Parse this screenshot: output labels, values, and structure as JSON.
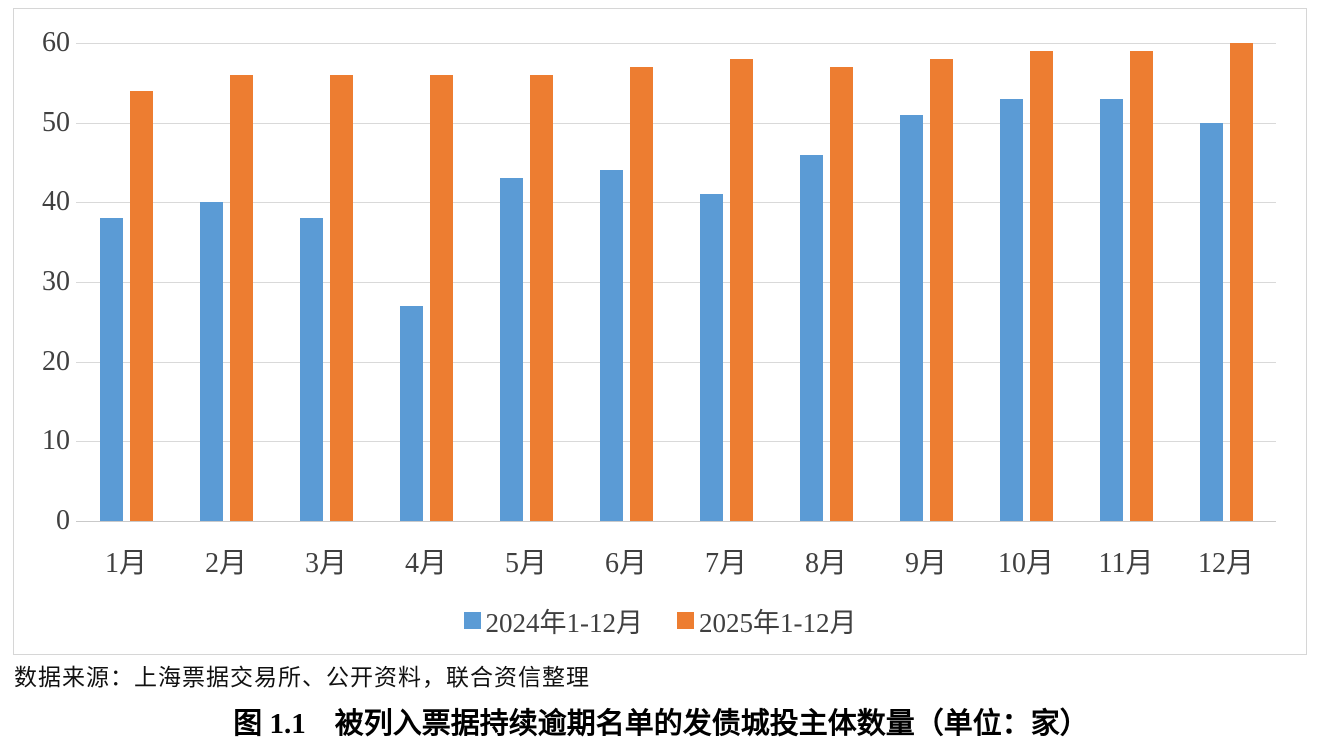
{
  "chart_data": {
    "type": "bar",
    "categories": [
      "1月",
      "2月",
      "3月",
      "4月",
      "5月",
      "6月",
      "7月",
      "8月",
      "9月",
      "10月",
      "11月",
      "12月"
    ],
    "series": [
      {
        "name": "2024年1-12月",
        "color": "#5B9BD5",
        "values": [
          38,
          40,
          38,
          27,
          43,
          44,
          41,
          46,
          51,
          53,
          53,
          50
        ]
      },
      {
        "name": "2025年1-12月",
        "color": "#ED7D31",
        "values": [
          54,
          56,
          56,
          56,
          56,
          57,
          58,
          57,
          58,
          59,
          59,
          60
        ]
      }
    ],
    "title": "图 1.1　被列入票据持续逾期名单的发债城投主体数量（单位：家）",
    "xlabel": "",
    "ylabel": "",
    "ylim": [
      0,
      60
    ],
    "yticks": [
      0,
      10,
      20,
      30,
      40,
      50,
      60
    ],
    "grid": true,
    "legend_position": "bottom-center"
  },
  "colors": {
    "series_2024": "#5B9BD5",
    "series_2025": "#ED7D31",
    "gridline": "#d9d9d9",
    "tick_text": "#404040"
  },
  "caption": {
    "source": "数据来源：上海票据交易所、公开资料，联合资信整理",
    "title": "图 1.1　被列入票据持续逾期名单的发债城投主体数量（单位：家）"
  }
}
